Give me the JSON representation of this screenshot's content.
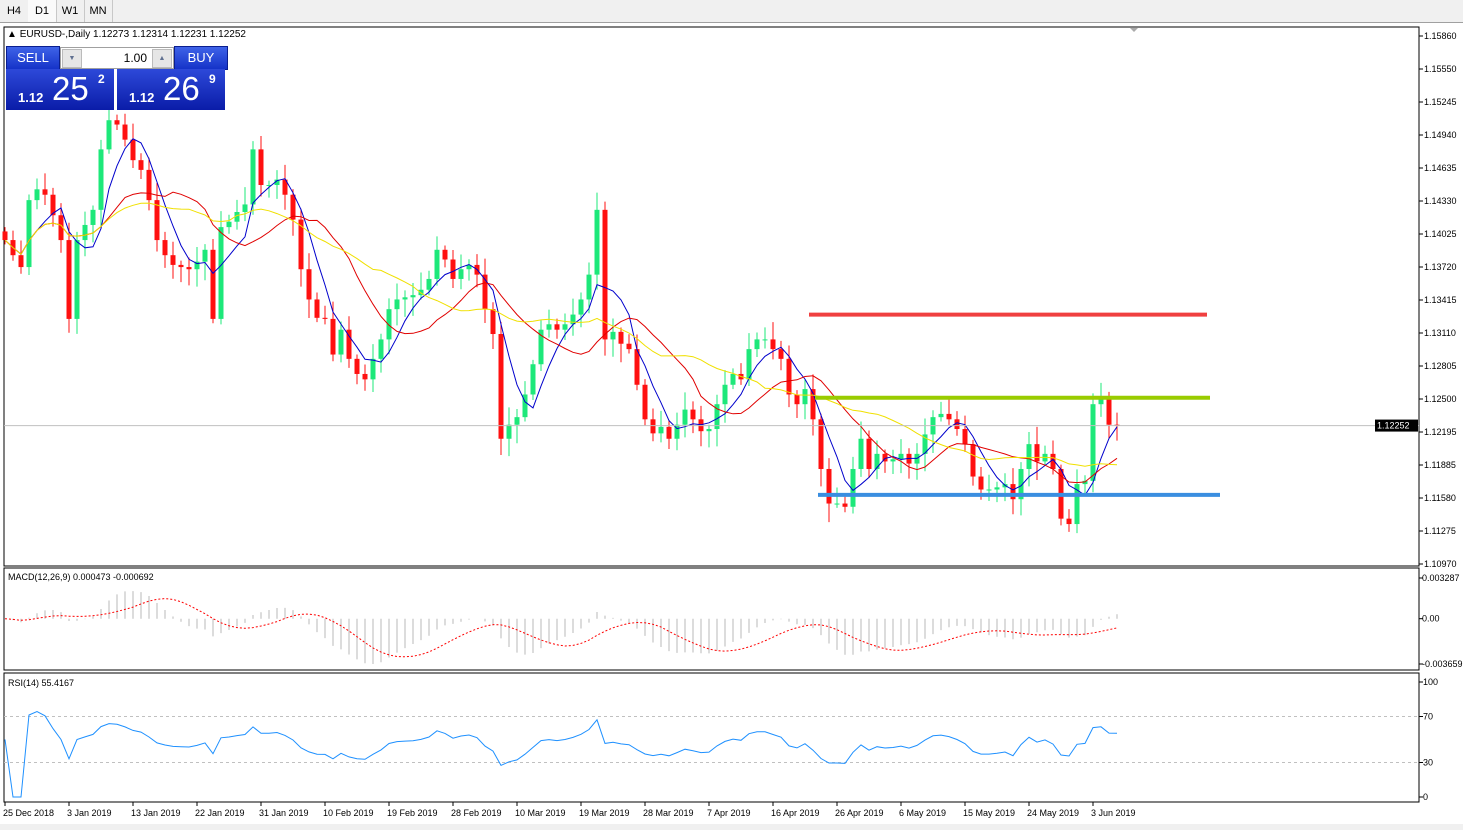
{
  "tabs": [
    {
      "label": "H4"
    },
    {
      "label": "D1",
      "active": true
    },
    {
      "label": "W1"
    },
    {
      "label": "MN"
    }
  ],
  "header": {
    "symbol_title": "EURUSD-,Daily",
    "ohlc": "1.12273 1.12314 1.12231 1.12252"
  },
  "trade_panel": {
    "sell_label": "SELL",
    "buy_label": "BUY",
    "lot": "1.00",
    "sell_prefix": "1.12",
    "sell_big": "25",
    "sell_sup": "2",
    "buy_prefix": "1.12",
    "buy_big": "26",
    "buy_sup": "9"
  },
  "colors": {
    "bull": "#1de87a",
    "bear": "#ff1010",
    "ma_fast": "#0000cc",
    "ma_mid": "#e00000",
    "ma_slow": "#f0e000",
    "macd_hist": "#b8b8b8",
    "macd_signal": "#ff0000",
    "rsi": "#1e90ff",
    "line_red": "#f04040",
    "line_green": "#99cc00",
    "line_blue": "#3a8ee0"
  },
  "chart_data": [
    {
      "type": "candlestick",
      "symbol": "EURUSD-",
      "timeframe": "Daily",
      "price_ticks": [
        "1.15860",
        "1.15550",
        "1.15245",
        "1.14940",
        "1.14635",
        "1.14330",
        "1.14025",
        "1.13720",
        "1.13415",
        "1.13110",
        "1.12805",
        "1.12500",
        "1.12195",
        "1.11885",
        "1.11580",
        "1.11275",
        "1.10970"
      ],
      "ylim": [
        1.1097,
        1.1586
      ],
      "current_price": "1.12252",
      "date_labels": [
        "25 Dec 2018",
        "3 Jan 2019",
        "13 Jan 2019",
        "22 Jan 2019",
        "31 Jan 2019",
        "10 Feb 2019",
        "19 Feb 2019",
        "28 Feb 2019",
        "10 Mar 2019",
        "19 Mar 2019",
        "28 Mar 2019",
        "7 Apr 2019",
        "16 Apr 2019",
        "26 Apr 2019",
        "6 May 2019",
        "15 May 2019",
        "24 May 2019",
        "3 Jun 2019"
      ],
      "close": [
        1.1397,
        1.1383,
        1.1372,
        1.1434,
        1.1444,
        1.1439,
        1.142,
        1.1397,
        1.1324,
        1.1397,
        1.1411,
        1.1425,
        1.1481,
        1.1508,
        1.1504,
        1.149,
        1.1471,
        1.1462,
        1.1434,
        1.1397,
        1.1383,
        1.1374,
        1.1372,
        1.137,
        1.1377,
        1.1388,
        1.1324,
        1.1409,
        1.1414,
        1.1423,
        1.143,
        1.1481,
        1.1448,
        1.1448,
        1.1453,
        1.1439,
        1.1416,
        1.137,
        1.1342,
        1.1325,
        1.1324,
        1.1291,
        1.1314,
        1.1287,
        1.1273,
        1.1268,
        1.1287,
        1.1305,
        1.1333,
        1.1342,
        1.1344,
        1.1346,
        1.1351,
        1.1361,
        1.1388,
        1.1379,
        1.1361,
        1.137,
        1.1374,
        1.1365,
        1.1333,
        1.131,
        1.1213,
        1.1226,
        1.1233,
        1.1254,
        1.1282,
        1.1314,
        1.1319,
        1.1314,
        1.1319,
        1.1328,
        1.1342,
        1.1365,
        1.1425,
        1.1305,
        1.1312,
        1.1301,
        1.1296,
        1.1263,
        1.1231,
        1.1218,
        1.1224,
        1.1213,
        1.1226,
        1.124,
        1.1231,
        1.122,
        1.1222,
        1.1245,
        1.1263,
        1.1273,
        1.1268,
        1.1296,
        1.1305,
        1.1305,
        1.1296,
        1.1287,
        1.1254,
        1.1245,
        1.1259,
        1.1231,
        1.1185,
        1.1153,
        1.1153,
        1.115,
        1.1185,
        1.1213,
        1.1185,
        1.1199,
        1.1192,
        1.1194,
        1.1199,
        1.119,
        1.1199,
        1.1217,
        1.1233,
        1.1236,
        1.1231,
        1.1222,
        1.1208,
        1.1178,
        1.1166,
        1.1166,
        1.1168,
        1.1171,
        1.1157,
        1.1185,
        1.1208,
        1.1192,
        1.1199,
        1.1185,
        1.1139,
        1.1134,
        1.1171,
        1.1174,
        1.1245,
        1.125,
        1.1226,
        1.12252
      ],
      "moving_averages": [
        5,
        13,
        21
      ],
      "horizontal_lines": [
        {
          "price": 1.1328,
          "color": "red"
        },
        {
          "price": 1.1251,
          "color": "green"
        },
        {
          "price": 1.1161,
          "color": "blue"
        }
      ]
    },
    {
      "type": "bar+line",
      "indicator_label": "MACD(12,26,9) 0.000473 -0.000692",
      "ticks": [
        "0.003287",
        "0.00",
        "-0.003659"
      ],
      "ylim": [
        -0.003659,
        0.003287
      ]
    },
    {
      "type": "line",
      "indicator_label": "RSI(14) 55.4167",
      "ticks": [
        "100",
        "70",
        "30",
        "0"
      ],
      "ylim": [
        0,
        100
      ],
      "levels": [
        70,
        30
      ]
    }
  ]
}
